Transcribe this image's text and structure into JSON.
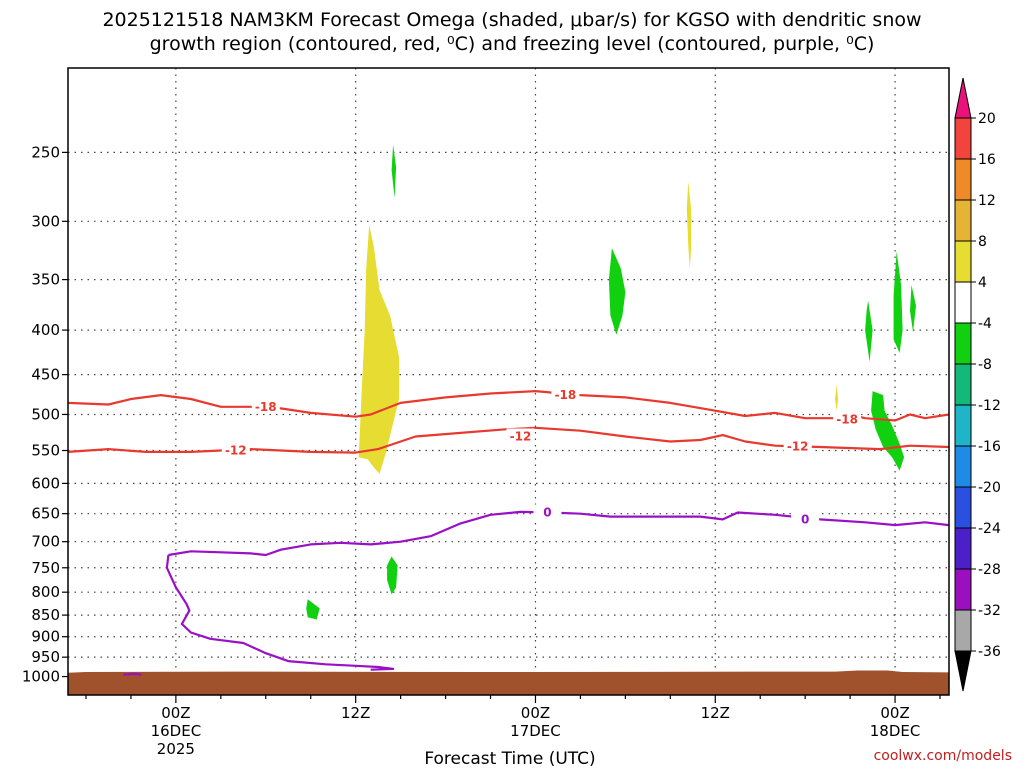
{
  "chart_data": {
    "type": "heatmap",
    "title_lines": [
      "2025121518 NAM3KM Forecast Omega (shaded, μbar/s) for KGSO with dendritic snow",
      "growth region (contoured, red, ⁰C) and freezing level (contoured, purple, ⁰C)"
    ],
    "xlabel": "Forecast Time (UTC)",
    "credit": "coolwx.com/models",
    "x_range_hours": [
      -7.2,
      51.6
    ],
    "x_ticks": [
      {
        "hour": 0,
        "labels": [
          "00Z",
          "16DEC",
          "2025"
        ]
      },
      {
        "hour": 12,
        "labels": [
          "12Z"
        ]
      },
      {
        "hour": 24,
        "labels": [
          "00Z",
          "17DEC"
        ]
      },
      {
        "hour": 36,
        "labels": [
          "12Z"
        ]
      },
      {
        "hour": 48,
        "labels": [
          "00Z",
          "18DEC"
        ]
      }
    ],
    "y_axis": {
      "scale": "log-pressure",
      "range_hpa": [
        1050,
        200
      ],
      "ticks": [
        250,
        300,
        350,
        400,
        450,
        500,
        550,
        600,
        650,
        700,
        750,
        800,
        850,
        900,
        950,
        1000
      ],
      "inverted": true
    },
    "grid": true,
    "terrain_color": "#a0522d",
    "colorbar": {
      "levels": [
        20,
        16,
        12,
        8,
        4,
        -4,
        -8,
        -12,
        -16,
        -20,
        -24,
        -28,
        -32,
        -36
      ],
      "colors": [
        "#e8127a",
        "#f0443c",
        "#f08a28",
        "#e6b435",
        "#e6dc32",
        "#ffffff",
        "#10d010",
        "#14b878",
        "#20b4c8",
        "#1e8ce6",
        "#2a50e0",
        "#4b20c8",
        "#9a10c0",
        "#a8a8a8",
        "#000000"
      ]
    },
    "omega_regions": [
      {
        "value_range": "4 to 8",
        "color": "#e6dc32",
        "points": [
          [
            12.2,
            560
          ],
          [
            12.4,
            470
          ],
          [
            12.6,
            400
          ],
          [
            12.7,
            340
          ],
          [
            12.9,
            303
          ],
          [
            13.2,
            320
          ],
          [
            13.6,
            360
          ],
          [
            14.3,
            385
          ],
          [
            14.9,
            430
          ],
          [
            14.9,
            480
          ],
          [
            14.4,
            520
          ],
          [
            14.0,
            555
          ],
          [
            13.6,
            585
          ],
          [
            13.2,
            575
          ],
          [
            12.8,
            563
          ]
        ]
      },
      {
        "value_range": "4 to 8",
        "color": "#e6dc32",
        "points": [
          [
            34.2,
            270
          ],
          [
            34.4,
            292
          ],
          [
            34.4,
            320
          ],
          [
            34.3,
            340
          ],
          [
            34.2,
            320
          ],
          [
            34.1,
            290
          ]
        ]
      },
      {
        "value_range": "4 to 8",
        "color": "#e6dc32",
        "points": [
          [
            44.1,
            462
          ],
          [
            44.2,
            480
          ],
          [
            44.1,
            495
          ],
          [
            44.0,
            480
          ]
        ]
      },
      {
        "value_range": "-4 to -8",
        "color": "#10d010",
        "points": [
          [
            14.5,
            245
          ],
          [
            14.7,
            260
          ],
          [
            14.6,
            282
          ],
          [
            14.4,
            262
          ]
        ]
      },
      {
        "value_range": "-4 to -8",
        "color": "#10d010",
        "points": [
          [
            29.1,
            322
          ],
          [
            29.7,
            340
          ],
          [
            30.0,
            362
          ],
          [
            29.8,
            385
          ],
          [
            29.4,
            405
          ],
          [
            29.0,
            385
          ],
          [
            28.9,
            350
          ]
        ]
      },
      {
        "value_range": "-4 to -8",
        "color": "#10d010",
        "points": [
          [
            46.2,
            370
          ],
          [
            46.5,
            400
          ],
          [
            46.3,
            435
          ],
          [
            46.0,
            400
          ],
          [
            46.1,
            380
          ]
        ]
      },
      {
        "value_range": "-4 to -8",
        "color": "#10d010",
        "points": [
          [
            48.1,
            325
          ],
          [
            48.4,
            355
          ],
          [
            48.5,
            400
          ],
          [
            48.3,
            425
          ],
          [
            47.9,
            410
          ],
          [
            47.9,
            365
          ]
        ]
      },
      {
        "value_range": "-4 to -8",
        "color": "#10d010",
        "points": [
          [
            49.1,
            355
          ],
          [
            49.4,
            375
          ],
          [
            49.2,
            402
          ],
          [
            49.0,
            380
          ]
        ]
      },
      {
        "value_range": "-4 to -8",
        "color": "#10d010",
        "points": [
          [
            46.5,
            470
          ],
          [
            47.2,
            475
          ],
          [
            47.3,
            495
          ],
          [
            47.8,
            515
          ],
          [
            48.3,
            540
          ],
          [
            48.6,
            560
          ],
          [
            48.3,
            580
          ],
          [
            47.8,
            560
          ],
          [
            47.2,
            545
          ],
          [
            46.7,
            520
          ],
          [
            46.4,
            495
          ]
        ]
      },
      {
        "value_range": "-4 to -8",
        "color": "#10d010",
        "points": [
          [
            14.4,
            728
          ],
          [
            14.8,
            745
          ],
          [
            14.7,
            790
          ],
          [
            14.4,
            805
          ],
          [
            14.1,
            775
          ],
          [
            14.1,
            745
          ]
        ]
      },
      {
        "value_range": "-4 to -8",
        "color": "#10d010",
        "points": [
          [
            8.8,
            815
          ],
          [
            9.6,
            835
          ],
          [
            9.4,
            860
          ],
          [
            8.8,
            855
          ],
          [
            8.7,
            835
          ]
        ]
      }
    ],
    "contours": [
      {
        "label": "-18",
        "color": "#e8392e",
        "label_at": [
          [
            6.0,
            490
          ],
          [
            26.0,
            475
          ],
          [
            44.8,
            507
          ]
        ],
        "points": [
          [
            -7.2,
            485
          ],
          [
            -4.5,
            487
          ],
          [
            -3.0,
            480
          ],
          [
            -1.0,
            475
          ],
          [
            1.0,
            480
          ],
          [
            3.0,
            490
          ],
          [
            5.0,
            490
          ],
          [
            7.0,
            492
          ],
          [
            9.0,
            498
          ],
          [
            12.0,
            503
          ],
          [
            13.0,
            500
          ],
          [
            15.0,
            485
          ],
          [
            18.0,
            478
          ],
          [
            21.0,
            473
          ],
          [
            24.0,
            470
          ],
          [
            27.0,
            475
          ],
          [
            30.0,
            478
          ],
          [
            33.0,
            485
          ],
          [
            36.0,
            495
          ],
          [
            38.0,
            502
          ],
          [
            40.0,
            498
          ],
          [
            42.0,
            505
          ],
          [
            44.0,
            505
          ],
          [
            45.0,
            500
          ],
          [
            46.0,
            505
          ],
          [
            48.0,
            508
          ],
          [
            49.0,
            500
          ],
          [
            50.0,
            505
          ],
          [
            51.6,
            500
          ]
        ]
      },
      {
        "label": "-12",
        "color": "#e8392e",
        "label_at": [
          [
            4.0,
            550
          ],
          [
            23.0,
            530
          ],
          [
            41.5,
            544
          ]
        ],
        "points": [
          [
            -7.2,
            552
          ],
          [
            -4.5,
            548
          ],
          [
            -2.0,
            552
          ],
          [
            1.0,
            552
          ],
          [
            5.0,
            548
          ],
          [
            9.0,
            552
          ],
          [
            12.0,
            553
          ],
          [
            13.5,
            548
          ],
          [
            16.0,
            530
          ],
          [
            19.0,
            525
          ],
          [
            22.0,
            520
          ],
          [
            24.0,
            518
          ],
          [
            27.0,
            522
          ],
          [
            30.0,
            530
          ],
          [
            33.0,
            537
          ],
          [
            35.0,
            535
          ],
          [
            36.5,
            528
          ],
          [
            38.0,
            537
          ],
          [
            40.0,
            543
          ],
          [
            43.0,
            545
          ],
          [
            47.0,
            548
          ],
          [
            49.0,
            543
          ],
          [
            51.6,
            545
          ]
        ]
      },
      {
        "label": "0",
        "color": "#9a10c4",
        "label_at": [
          [
            24.8,
            648
          ],
          [
            42.0,
            660
          ]
        ],
        "points": [
          [
            -0.5,
            725
          ],
          [
            1.0,
            718
          ],
          [
            3.0,
            720
          ],
          [
            5.0,
            722
          ],
          [
            6.0,
            725
          ],
          [
            7.0,
            715
          ],
          [
            9.0,
            705
          ],
          [
            11.0,
            702
          ],
          [
            13.0,
            705
          ],
          [
            15.0,
            700
          ],
          [
            17.0,
            690
          ],
          [
            19.0,
            667
          ],
          [
            21.0,
            652
          ],
          [
            23.0,
            647
          ],
          [
            25.0,
            648
          ],
          [
            27.0,
            650
          ],
          [
            29.0,
            655
          ],
          [
            31.0,
            655
          ],
          [
            33.0,
            655
          ],
          [
            35.0,
            655
          ],
          [
            36.5,
            660
          ],
          [
            37.5,
            648
          ],
          [
            40.0,
            652
          ],
          [
            43.0,
            660
          ],
          [
            46.0,
            665
          ],
          [
            48.0,
            670
          ],
          [
            50.0,
            665
          ],
          [
            51.6,
            670
          ]
        ]
      },
      {
        "label": "",
        "color": "#9a10c4",
        "label_at": [],
        "points": [
          [
            -0.5,
            725
          ],
          [
            -0.6,
            750
          ],
          [
            0.0,
            790
          ],
          [
            0.7,
            825
          ],
          [
            0.9,
            840
          ],
          [
            0.4,
            870
          ],
          [
            1.0,
            890
          ],
          [
            2.3,
            905
          ],
          [
            4.5,
            915
          ],
          [
            6.0,
            940
          ],
          [
            7.5,
            960
          ],
          [
            10.0,
            968
          ],
          [
            12.0,
            972
          ],
          [
            13.5,
            975
          ],
          [
            14.5,
            980
          ],
          [
            13.0,
            982
          ]
        ]
      },
      {
        "label": "",
        "color": "#9a10c4",
        "label_at": [],
        "points": [
          [
            -3.5,
            995
          ],
          [
            -2.8,
            993
          ],
          [
            -2.3,
            995
          ]
        ]
      }
    ]
  }
}
